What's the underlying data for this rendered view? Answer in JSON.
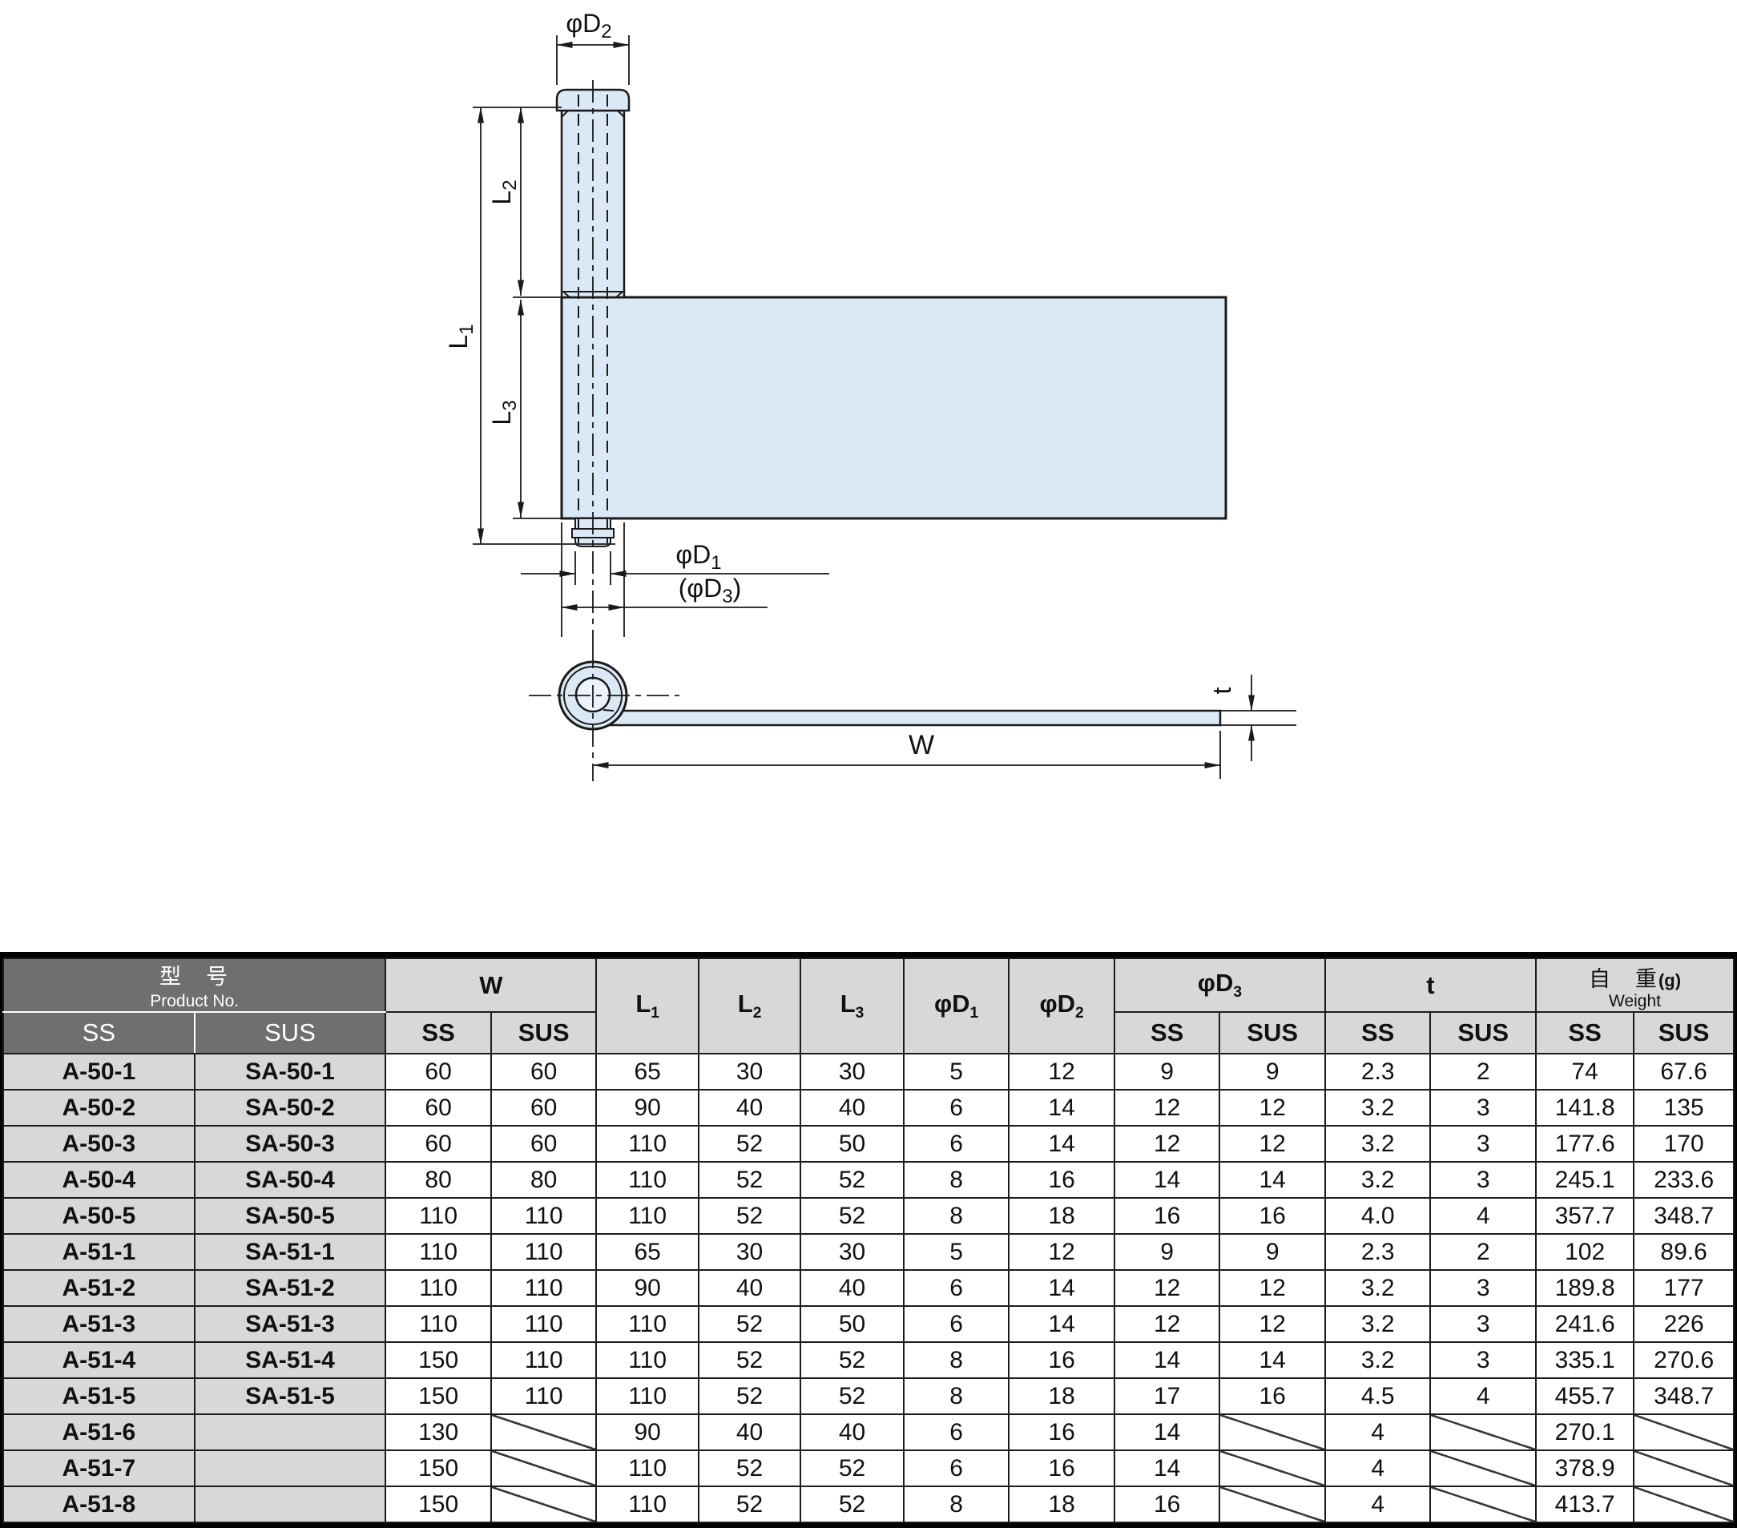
{
  "drawing": {
    "colors": {
      "fill": "#dbe8f6",
      "hole_fill": "#edf3fb",
      "line": "#1a1a1a"
    },
    "labels": {
      "d2": {
        "base": "φD",
        "sub": "2"
      },
      "l1": {
        "base": "L",
        "sub": "1"
      },
      "l2": {
        "base": "L",
        "sub": "2"
      },
      "l3": {
        "base": "L",
        "sub": "3"
      },
      "d1": {
        "base": "φD",
        "sub": "1"
      },
      "d3": {
        "prefix": "(",
        "base": "φD",
        "sub": "3",
        "suffix": ")"
      },
      "w": "W",
      "t": "t"
    }
  },
  "table": {
    "header": {
      "product_zh": "型　号",
      "product_en": "Product No.",
      "ss": "SS",
      "sus": "SUS",
      "w": "W",
      "l1": {
        "base": "L",
        "sub": "1"
      },
      "l2": {
        "base": "L",
        "sub": "2"
      },
      "l3": {
        "base": "L",
        "sub": "3"
      },
      "d1": {
        "base": "φD",
        "sub": "1"
      },
      "d2": {
        "base": "φD",
        "sub": "2"
      },
      "d3": {
        "base": "φD",
        "sub": "3"
      },
      "t": "t",
      "weight_zh": "自　重",
      "weight_unit": "(g)",
      "weight_en": "Weight"
    },
    "rows": [
      [
        "A-50-1",
        "SA-50-1",
        "60",
        "60",
        "65",
        "30",
        "30",
        "5",
        "12",
        "9",
        "9",
        "2.3",
        "2",
        "74",
        "67.6"
      ],
      [
        "A-50-2",
        "SA-50-2",
        "60",
        "60",
        "90",
        "40",
        "40",
        "6",
        "14",
        "12",
        "12",
        "3.2",
        "3",
        "141.8",
        "135"
      ],
      [
        "A-50-3",
        "SA-50-3",
        "60",
        "60",
        "110",
        "52",
        "50",
        "6",
        "14",
        "12",
        "12",
        "3.2",
        "3",
        "177.6",
        "170"
      ],
      [
        "A-50-4",
        "SA-50-4",
        "80",
        "80",
        "110",
        "52",
        "52",
        "8",
        "16",
        "14",
        "14",
        "3.2",
        "3",
        "245.1",
        "233.6"
      ],
      [
        "A-50-5",
        "SA-50-5",
        "110",
        "110",
        "110",
        "52",
        "52",
        "8",
        "18",
        "16",
        "16",
        "4.0",
        "4",
        "357.7",
        "348.7"
      ],
      [
        "A-51-1",
        "SA-51-1",
        "110",
        "110",
        "65",
        "30",
        "30",
        "5",
        "12",
        "9",
        "9",
        "2.3",
        "2",
        "102",
        "89.6"
      ],
      [
        "A-51-2",
        "SA-51-2",
        "110",
        "110",
        "90",
        "40",
        "40",
        "6",
        "14",
        "12",
        "12",
        "3.2",
        "3",
        "189.8",
        "177"
      ],
      [
        "A-51-3",
        "SA-51-3",
        "110",
        "110",
        "110",
        "52",
        "50",
        "6",
        "14",
        "12",
        "12",
        "3.2",
        "3",
        "241.6",
        "226"
      ],
      [
        "A-51-4",
        "SA-51-4",
        "150",
        "110",
        "110",
        "52",
        "52",
        "8",
        "16",
        "14",
        "14",
        "3.2",
        "3",
        "335.1",
        "270.6"
      ],
      [
        "A-51-5",
        "SA-51-5",
        "150",
        "110",
        "110",
        "52",
        "52",
        "8",
        "18",
        "17",
        "16",
        "4.5",
        "4",
        "455.7",
        "348.7"
      ],
      [
        "A-51-6",
        null,
        "130",
        null,
        "90",
        "40",
        "40",
        "6",
        "16",
        "14",
        null,
        "4",
        null,
        "270.1",
        null
      ],
      [
        "A-51-7",
        null,
        "150",
        null,
        "110",
        "52",
        "52",
        "6",
        "16",
        "14",
        null,
        "4",
        null,
        "378.9",
        null
      ],
      [
        "A-51-8",
        null,
        "150",
        null,
        "110",
        "52",
        "52",
        "8",
        "18",
        "16",
        null,
        "4",
        null,
        "413.7",
        null
      ]
    ]
  }
}
